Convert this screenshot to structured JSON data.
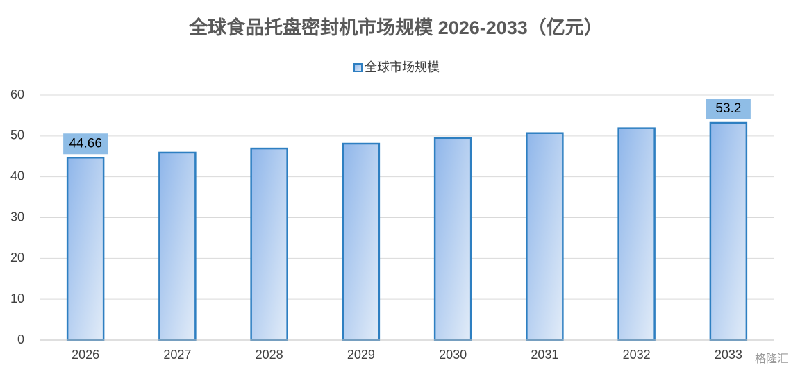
{
  "chart_data": {
    "type": "bar",
    "title": "全球食品托盘密封机市场规模 2026-2033（亿元）",
    "categories": [
      "2026",
      "2027",
      "2028",
      "2029",
      "2030",
      "2031",
      "2032",
      "2033"
    ],
    "series": [
      {
        "name": "全球市场规模",
        "color": "#2e7fc1",
        "values": [
          44.66,
          45.9,
          46.9,
          48.1,
          49.5,
          50.7,
          51.9,
          53.2
        ],
        "value_labels": [
          "44.66",
          null,
          null,
          null,
          null,
          null,
          null,
          "53.2"
        ]
      }
    ],
    "ylim": [
      0,
      60
    ],
    "yticks": [
      0,
      10,
      20,
      30,
      40,
      50,
      60
    ],
    "grid": true,
    "legend": "top",
    "watermark": "格隆汇"
  }
}
